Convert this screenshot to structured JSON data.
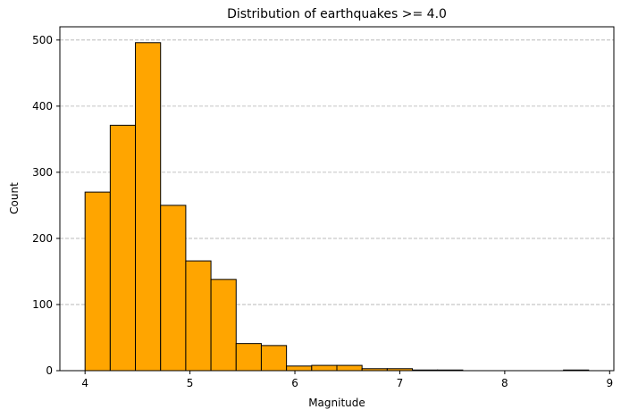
{
  "chart_data": {
    "type": "bar",
    "title": "Distribution of earthquakes >= 4.0",
    "xlabel": "Magnitude",
    "ylabel": "Count",
    "xlim": [
      3.76,
      9.04
    ],
    "ylim": [
      0,
      520
    ],
    "xticks": [
      4,
      5,
      6,
      7,
      8,
      9
    ],
    "yticks": [
      0,
      100,
      200,
      300,
      400,
      500
    ],
    "grid": "y",
    "bar_color": "#FFA500",
    "edge_color": "#000000",
    "bins": [
      {
        "x0": 4.0,
        "x1": 4.24,
        "value": 270
      },
      {
        "x0": 4.24,
        "x1": 4.48,
        "value": 371
      },
      {
        "x0": 4.48,
        "x1": 4.72,
        "value": 496
      },
      {
        "x0": 4.72,
        "x1": 4.96,
        "value": 250
      },
      {
        "x0": 4.96,
        "x1": 5.2,
        "value": 166
      },
      {
        "x0": 5.2,
        "x1": 5.44,
        "value": 138
      },
      {
        "x0": 5.44,
        "x1": 5.68,
        "value": 41
      },
      {
        "x0": 5.68,
        "x1": 5.92,
        "value": 38
      },
      {
        "x0": 5.92,
        "x1": 6.16,
        "value": 7
      },
      {
        "x0": 6.16,
        "x1": 6.4,
        "value": 8
      },
      {
        "x0": 6.4,
        "x1": 6.64,
        "value": 8
      },
      {
        "x0": 6.64,
        "x1": 6.88,
        "value": 3
      },
      {
        "x0": 6.88,
        "x1": 7.12,
        "value": 3
      },
      {
        "x0": 7.12,
        "x1": 7.36,
        "value": 1
      },
      {
        "x0": 7.36,
        "x1": 7.6,
        "value": 1
      },
      {
        "x0": 7.6,
        "x1": 7.84,
        "value": 0
      },
      {
        "x0": 7.84,
        "x1": 8.08,
        "value": 0
      },
      {
        "x0": 8.08,
        "x1": 8.32,
        "value": 0
      },
      {
        "x0": 8.32,
        "x1": 8.56,
        "value": 0
      },
      {
        "x0": 8.56,
        "x1": 8.8,
        "value": 1
      }
    ]
  }
}
